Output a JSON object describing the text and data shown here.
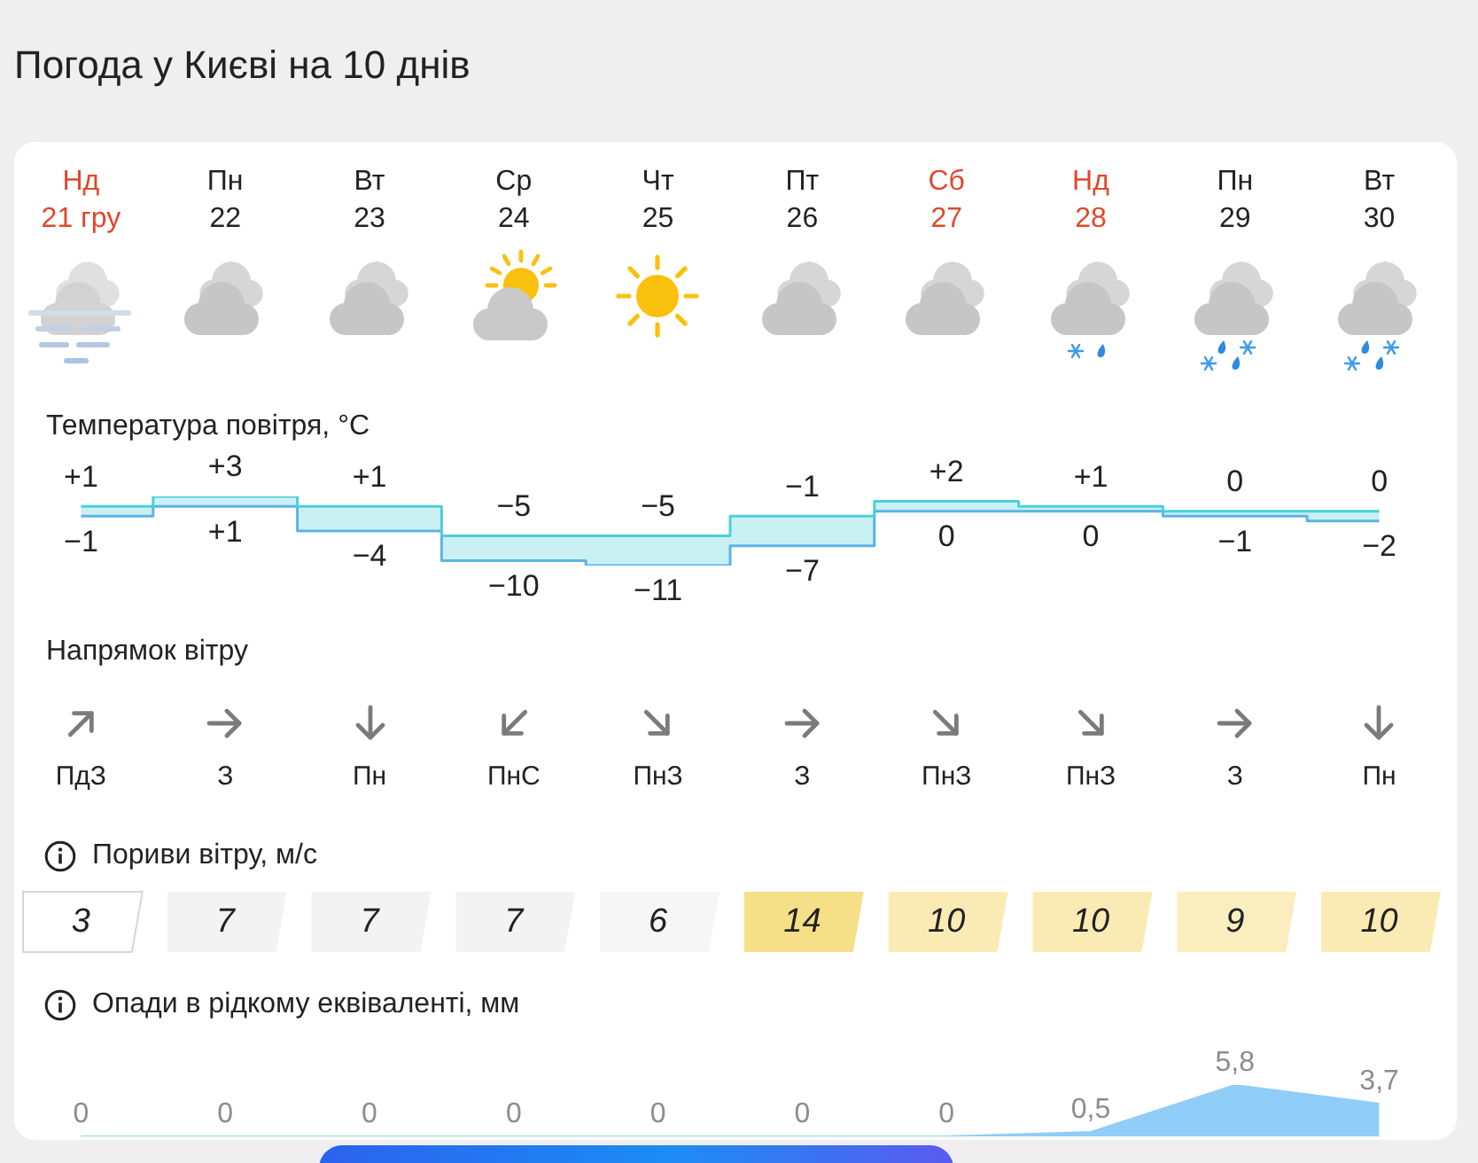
{
  "chart_data": [
    {
      "type": "step",
      "title": "Погода у Києві на 10 днів",
      "subtitle": "Температура повітря, °C",
      "categories": [
        "Нд 21 гру",
        "Пн 22",
        "Вт 23",
        "Ср 24",
        "Чт 25",
        "Пт 26",
        "Сб 27",
        "Нд 28",
        "Пн 29",
        "Вт 30"
      ],
      "tick_labels": "x",
      "series": [
        {
          "values": [
            1,
            3,
            1,
            -5,
            -5,
            -1,
            2,
            1,
            0,
            0
          ],
          "value_labels": [
            "+1",
            "+3",
            "+1",
            "−5",
            "−5",
            "−1",
            "+2",
            "+1",
            "0",
            "0"
          ],
          "color": "#4dcfd9",
          "lower": [
            -1,
            1,
            -4,
            -10,
            -11,
            -7,
            0,
            0,
            -1,
            -2
          ],
          "upper": [
            1,
            3,
            1,
            -5,
            -5,
            -1,
            2,
            1,
            0,
            0
          ]
        },
        {
          "values": [
            -1,
            1,
            -4,
            -10,
            -11,
            -7,
            0,
            0,
            -1,
            -2
          ],
          "value_labels": [
            "−1",
            "+1",
            "−4",
            "−10",
            "−11",
            "−7",
            "0",
            "0",
            "−1",
            "−2"
          ],
          "color": "#5cb3e6"
        }
      ]
    },
    {
      "type": "other",
      "title": "Напрямок вітру",
      "annotations": [
        "ПдЗ",
        "З",
        "Пн",
        "ПнС",
        "ПнЗ",
        "З",
        "ПнЗ",
        "ПнЗ",
        "З",
        "Пн"
      ]
    },
    {
      "type": "heatmap",
      "title": "Пориви вітру, м/с",
      "categories": [
        null,
        null,
        null,
        null,
        null,
        null,
        null,
        null,
        null,
        null
      ],
      "y_categories": [
        null
      ],
      "cells": [
        [
          3,
          7,
          7,
          7,
          6,
          14,
          10,
          10,
          9,
          10
        ]
      ],
      "data_labels": true,
      "tick_labels": false
    },
    {
      "type": "area",
      "title": "Опади в рідкому еквіваленті, мм",
      "categories": [
        null,
        null,
        null,
        null,
        null,
        null,
        null,
        null,
        null,
        null
      ],
      "values": [
        0,
        0,
        0,
        0,
        0,
        0,
        0,
        0.5,
        5.8,
        3.7
      ],
      "value_labels": [
        "0",
        "0",
        "0",
        "0",
        "0",
        "0",
        "0",
        "0,5",
        "5,8",
        "3,7"
      ],
      "color": "#90cdf8",
      "tick_labels": false
    }
  ]
}
